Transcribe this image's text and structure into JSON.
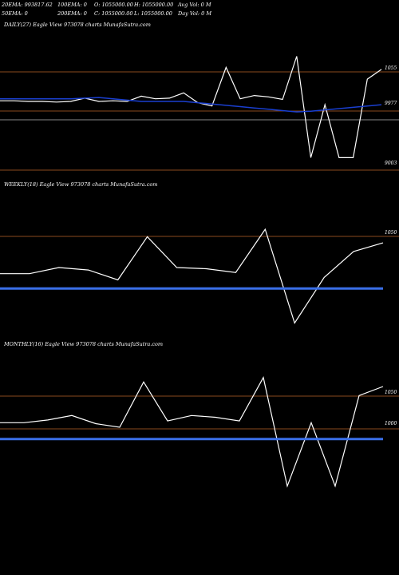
{
  "header": {
    "row1": [
      "20EMA: 993817.62",
      "100EMA: 0",
      "O: 1055000.00",
      "H: 1055000.00",
      "Avg Vol: 0  M"
    ],
    "row2": [
      "50EMA: 0",
      "200EMA: 0",
      "C: 1055000.00",
      "L: 1055000.00",
      "Day Vol: 0  M"
    ]
  },
  "chart_data": [
    {
      "type": "line",
      "title": "DAILY(27) Eagle  View  973078  charts MunafaSutra.com",
      "ylabels": [
        "1055",
        "9977",
        "9003"
      ],
      "series": [
        {
          "name": "price",
          "color": "#ffffff",
          "values": [
            987000,
            987000,
            986000,
            986000,
            985000,
            986000,
            991000,
            986000,
            987000,
            986000,
            994000,
            990000,
            991000,
            999000,
            984000,
            979000,
            1038000,
            990000,
            995000,
            993000,
            989000,
            1055000,
            900000,
            981000,
            900000,
            900000,
            1020000,
            1035000
          ]
        },
        {
          "name": "ema",
          "color": "#1a3fd0",
          "values": [
            990000,
            990000,
            990000,
            990000,
            990000,
            990000,
            991000,
            992000,
            990000,
            988000,
            986000,
            986000,
            986000,
            986000,
            984000,
            982000,
            980000,
            978000,
            976000,
            974000,
            972000,
            970000,
            971000,
            973000,
            975000,
            977000,
            979000,
            981000
          ]
        }
      ]
    },
    {
      "type": "line",
      "title": "WEEKLY(18) Eagle  View  973078  charts MunafaSutra.com",
      "ylabels": [
        "1050"
      ],
      "series": [
        {
          "name": "price",
          "color": "#ffffff",
          "values": [
            970000,
            970000,
            975000,
            973000,
            965000,
            1000000,
            975000,
            974000,
            971000,
            1006000,
            930000,
            967000,
            988000,
            995000
          ]
        },
        {
          "name": "ema",
          "color": "#3a6fe8",
          "values": [
            958000,
            958000,
            958000,
            958000,
            958000,
            958000,
            958000,
            958000,
            958000,
            958000,
            958000,
            958000,
            958000,
            958000
          ]
        }
      ]
    },
    {
      "type": "line",
      "title": "MONTHLY(16) Eagle  View  973078  charts MunafaSutra.com",
      "ylabels": [
        "1050",
        "1000"
      ],
      "series": [
        {
          "name": "price",
          "color": "#ffffff",
          "values": [
            1000000,
            1000000,
            1003000,
            1008000,
            999000,
            995000,
            1045000,
            1002000,
            1008000,
            1006000,
            1002000,
            1050000,
            930000,
            1000000,
            930000,
            1030000,
            1040000
          ]
        },
        {
          "name": "ema",
          "color": "#3a6fe8",
          "values": [
            982000,
            982000,
            982000,
            982000,
            982000,
            982000,
            982000,
            982000,
            982000,
            982000,
            982000,
            982000,
            982000,
            982000,
            982000,
            982000,
            982000
          ]
        }
      ]
    }
  ]
}
